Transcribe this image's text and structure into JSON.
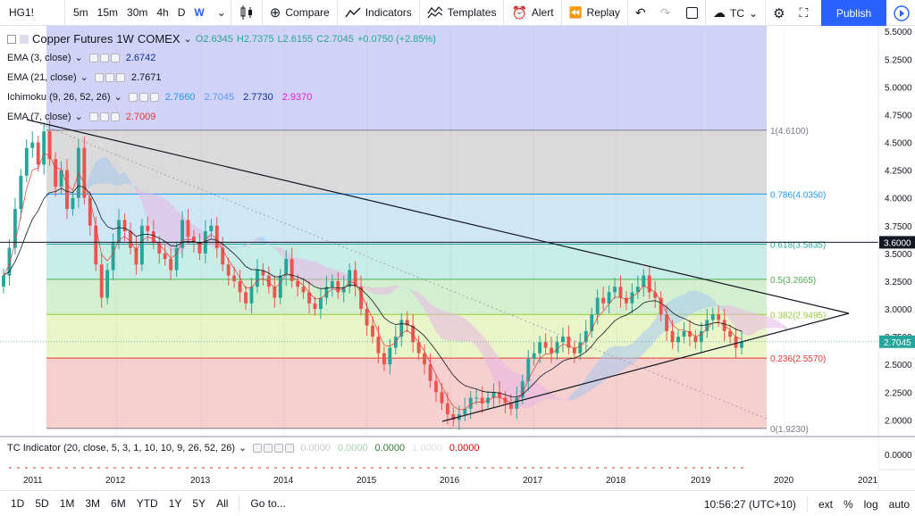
{
  "toolbar": {
    "symbol": "HG1!",
    "intervals": [
      "5m",
      "15m",
      "30m",
      "4h",
      "D",
      "W"
    ],
    "active_interval": "W",
    "compare_label": "Compare",
    "indicators_label": "Indicators",
    "templates_label": "Templates",
    "alert_label": "Alert",
    "replay_label": "Replay",
    "tc_label": "TC",
    "publish_label": "Publish"
  },
  "legend": {
    "title": "Copper Futures",
    "interval": "1W",
    "exchange": "COMEX",
    "open": "O2.6345",
    "high": "H2.7375",
    "low": "L2.6155",
    "close": "C2.7045",
    "change": "+0.0750 (+2.85%)",
    "studies": [
      {
        "label": "EMA (3, close)",
        "values": [
          {
            "v": "2.6742",
            "color": "#0c3299"
          }
        ]
      },
      {
        "label": "EMA (21, close)",
        "values": [
          {
            "v": "2.7671",
            "color": "#131722"
          }
        ]
      },
      {
        "label": "Ichimoku (9, 26, 52, 26)",
        "values": [
          {
            "v": "2.7660",
            "color": "#2196f3"
          },
          {
            "v": "2.7045",
            "color": "#5b9cf6"
          },
          {
            "v": "2.7730",
            "color": "#0c3299"
          },
          {
            "v": "2.9370",
            "color": "#e91ed5"
          }
        ]
      },
      {
        "label": "EMA (7, close)",
        "values": [
          {
            "v": "2.7009",
            "color": "#e53935"
          }
        ]
      }
    ]
  },
  "indicator_pane": {
    "label": "TC Indicator (20, close, 5, 3, 1, 10, 10, 9, 26, 52, 26)",
    "values": [
      {
        "v": "0.0000",
        "color": "#c9c9c9"
      },
      {
        "v": "0.0000",
        "color": "#a5d6a7"
      },
      {
        "v": "0.0000",
        "color": "#2e7d32"
      },
      {
        "v": "1.0000",
        "color": "#e0e0e0"
      },
      {
        "v": "0.0000",
        "color": "#d50000"
      }
    ],
    "axis_value": "0.0000"
  },
  "chart_data": {
    "type": "candlestick",
    "symbol": "HG1!",
    "price_axis": [
      "5.5000",
      "5.2500",
      "5.0000",
      "4.7500",
      "4.5000",
      "4.2500",
      "4.0000",
      "3.7500",
      "3.5000",
      "3.2500",
      "3.0000",
      "2.7500",
      "2.5000",
      "2.2500",
      "2.0000"
    ],
    "time_axis": [
      "2011",
      "2012",
      "2013",
      "2014",
      "2015",
      "2016",
      "2017",
      "2018",
      "2019",
      "2020",
      "2021"
    ],
    "ylim": [
      1.85,
      5.55
    ],
    "current_price": "2.7045",
    "horizontal_level": "3.6000",
    "fib_levels": [
      {
        "label": "1(4.6100)",
        "value": 4.61,
        "color": "#787b86",
        "fill": "#dadada"
      },
      {
        "label": "0.786(4.0350)",
        "value": 4.035,
        "color": "#2196f3",
        "fill": "#cfe6f7"
      },
      {
        "label": "0.618(3.5835)",
        "value": 3.5835,
        "color": "#26a69a",
        "fill": "#c8ece6"
      },
      {
        "label": "0.5(3.2665)",
        "value": 3.2665,
        "color": "#4caf50",
        "fill": "#d4efd0"
      },
      {
        "label": "0.382(2.9495)",
        "value": 2.9495,
        "color": "#9acd32",
        "fill": "#e9f4c9"
      },
      {
        "label": "0.236(2.5570)",
        "value": 2.557,
        "color": "#e53935",
        "fill": "#f6cfcf"
      },
      {
        "label": "0(1.9230)",
        "value": 1.923,
        "color": "#787b86",
        "fill": "#f6cfcf"
      }
    ],
    "closes": [
      3.3,
      3.55,
      3.9,
      4.2,
      4.45,
      4.5,
      4.3,
      4.6,
      4.35,
      4.1,
      4.25,
      3.9,
      4.0,
      4.45,
      4.0,
      3.75,
      3.4,
      3.1,
      3.35,
      3.6,
      3.8,
      3.7,
      3.55,
      3.4,
      3.75,
      3.7,
      3.6,
      3.5,
      3.45,
      3.35,
      3.55,
      3.8,
      3.65,
      3.6,
      3.5,
      3.7,
      3.75,
      3.55,
      3.4,
      3.3,
      3.25,
      3.15,
      3.05,
      3.2,
      3.35,
      3.3,
      3.2,
      3.1,
      3.3,
      3.45,
      3.25,
      3.2,
      3.15,
      3.05,
      3.0,
      3.1,
      3.2,
      3.25,
      3.15,
      3.2,
      3.35,
      3.2,
      3.0,
      2.85,
      2.75,
      2.6,
      2.5,
      2.65,
      2.75,
      2.9,
      2.85,
      2.7,
      2.6,
      2.5,
      2.35,
      2.25,
      2.15,
      2.05,
      2.0,
      2.05,
      2.1,
      2.2,
      2.2,
      2.15,
      2.2,
      2.25,
      2.2,
      2.15,
      2.1,
      2.2,
      2.35,
      2.55,
      2.6,
      2.7,
      2.65,
      2.6,
      2.7,
      2.75,
      2.65,
      2.6,
      2.7,
      2.8,
      2.95,
      3.1,
      3.05,
      3.15,
      3.2,
      3.1,
      3.05,
      3.15,
      3.2,
      3.3,
      3.15,
      3.1,
      2.95,
      2.8,
      2.7,
      2.75,
      2.8,
      2.75,
      2.7,
      2.8,
      2.9,
      2.95,
      2.9,
      2.8,
      2.75,
      2.65,
      2.7045
    ]
  },
  "bottombar": {
    "ranges": [
      "1D",
      "5D",
      "1M",
      "3M",
      "6M",
      "YTD",
      "1Y",
      "5Y",
      "All"
    ],
    "goto_label": "Go to...",
    "clock": "10:56:27 (UTC+10)",
    "ext_label": "ext",
    "pct_label": "%",
    "log_label": "log",
    "auto_label": "auto"
  }
}
